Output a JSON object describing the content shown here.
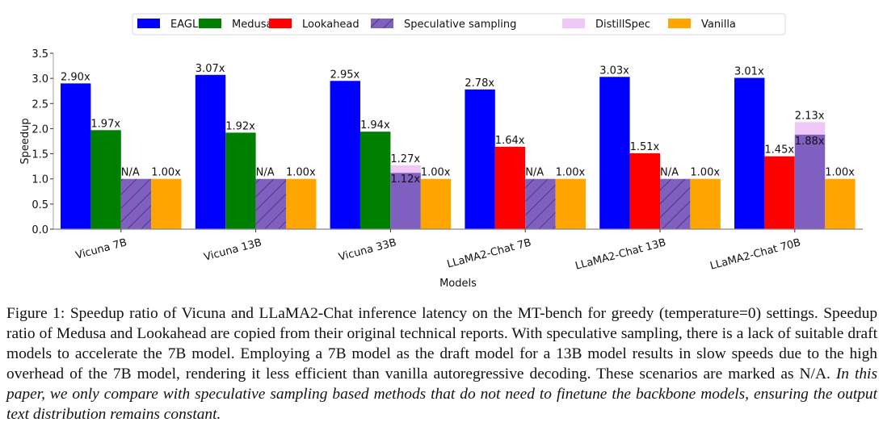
{
  "chart_data": {
    "type": "bar",
    "title": "",
    "xlabel": "Models",
    "ylabel": "Speedup",
    "ylim": [
      0,
      3.5
    ],
    "yticks": [
      "0.0",
      "0.5",
      "1.0",
      "1.5",
      "2.0",
      "2.5",
      "3.0",
      "3.5"
    ],
    "grid": false,
    "legend_position": "top-center",
    "categories": [
      "Vicuna 7B",
      "Vicuna 13B",
      "Vicuna 33B",
      "LLaMA2-Chat 7B",
      "LLaMA2-Chat 13B",
      "LLaMA2-Chat 70B"
    ],
    "legend": [
      {
        "name": "EAGLE",
        "color": "#0000ff",
        "hatch": false
      },
      {
        "name": "Medusa",
        "color": "#008000",
        "hatch": false
      },
      {
        "name": "Lookahead",
        "color": "#ff0000",
        "hatch": false
      },
      {
        "name": "Speculative sampling",
        "color": "#7f5fbf",
        "hatch": true
      },
      {
        "name": "DistillSpec",
        "color": "#f0c8f8",
        "hatch": false
      },
      {
        "name": "Vanilla",
        "color": "#ffa500",
        "hatch": false
      }
    ],
    "groups": [
      {
        "bars": [
          {
            "series": "EAGLE",
            "value": 2.9,
            "label": "2.90x"
          },
          {
            "series": "Medusa",
            "value": 1.97,
            "label": "1.97x"
          },
          {
            "series": "Speculative sampling",
            "value": 1.0,
            "label": "N/A",
            "hatch": true
          },
          {
            "series": "Vanilla",
            "value": 1.0,
            "label": "1.00x"
          }
        ]
      },
      {
        "bars": [
          {
            "series": "EAGLE",
            "value": 3.07,
            "label": "3.07x"
          },
          {
            "series": "Medusa",
            "value": 1.92,
            "label": "1.92x"
          },
          {
            "series": "Speculative sampling",
            "value": 1.0,
            "label": "N/A",
            "hatch": true
          },
          {
            "series": "Vanilla",
            "value": 1.0,
            "label": "1.00x"
          }
        ]
      },
      {
        "bars": [
          {
            "series": "EAGLE",
            "value": 2.95,
            "label": "2.95x"
          },
          {
            "series": "Medusa",
            "value": 1.94,
            "label": "1.94x"
          },
          {
            "series": "Speculative sampling",
            "value": 1.12,
            "label": "1.12x",
            "stack": {
              "series": "DistillSpec",
              "value": 1.27,
              "label": "1.27x"
            }
          },
          {
            "series": "Vanilla",
            "value": 1.0,
            "label": "1.00x"
          }
        ]
      },
      {
        "bars": [
          {
            "series": "EAGLE",
            "value": 2.78,
            "label": "2.78x"
          },
          {
            "series": "Lookahead",
            "value": 1.64,
            "label": "1.64x"
          },
          {
            "series": "Speculative sampling",
            "value": 1.0,
            "label": "N/A",
            "hatch": true
          },
          {
            "series": "Vanilla",
            "value": 1.0,
            "label": "1.00x"
          }
        ]
      },
      {
        "bars": [
          {
            "series": "EAGLE",
            "value": 3.03,
            "label": "3.03x"
          },
          {
            "series": "Lookahead",
            "value": 1.51,
            "label": "1.51x"
          },
          {
            "series": "Speculative sampling",
            "value": 1.0,
            "label": "N/A",
            "hatch": true
          },
          {
            "series": "Vanilla",
            "value": 1.0,
            "label": "1.00x"
          }
        ]
      },
      {
        "bars": [
          {
            "series": "EAGLE",
            "value": 3.01,
            "label": "3.01x"
          },
          {
            "series": "Lookahead",
            "value": 1.45,
            "label": "1.45x"
          },
          {
            "series": "Speculative sampling",
            "value": 1.88,
            "label": "1.88x",
            "stack": {
              "series": "DistillSpec",
              "value": 2.13,
              "label": "2.13x"
            }
          },
          {
            "series": "Vanilla",
            "value": 1.0,
            "label": "1.00x"
          }
        ]
      }
    ]
  },
  "caption": {
    "prefix": "Figure 1: ",
    "normal": "Speedup ratio of Vicuna and LLaMA2-Chat inference latency on the MT-bench for greedy (temperature=0) settings. Speedup ratio of Medusa and Lookahead are copied from their original technical reports. With speculative sampling, there is a lack of suitable draft models to accelerate the 7B model. Employing a 7B model as the draft model for a 13B model results in slow speeds due to the high overhead of the 7B model, rendering it less efficient than vanilla autoregressive decoding. These scenarios are marked as N/A. ",
    "italic": "In this paper, we only compare with speculative sampling based methods that do not need to finetune the backbone models, ensuring the output text distribution remains constant."
  }
}
